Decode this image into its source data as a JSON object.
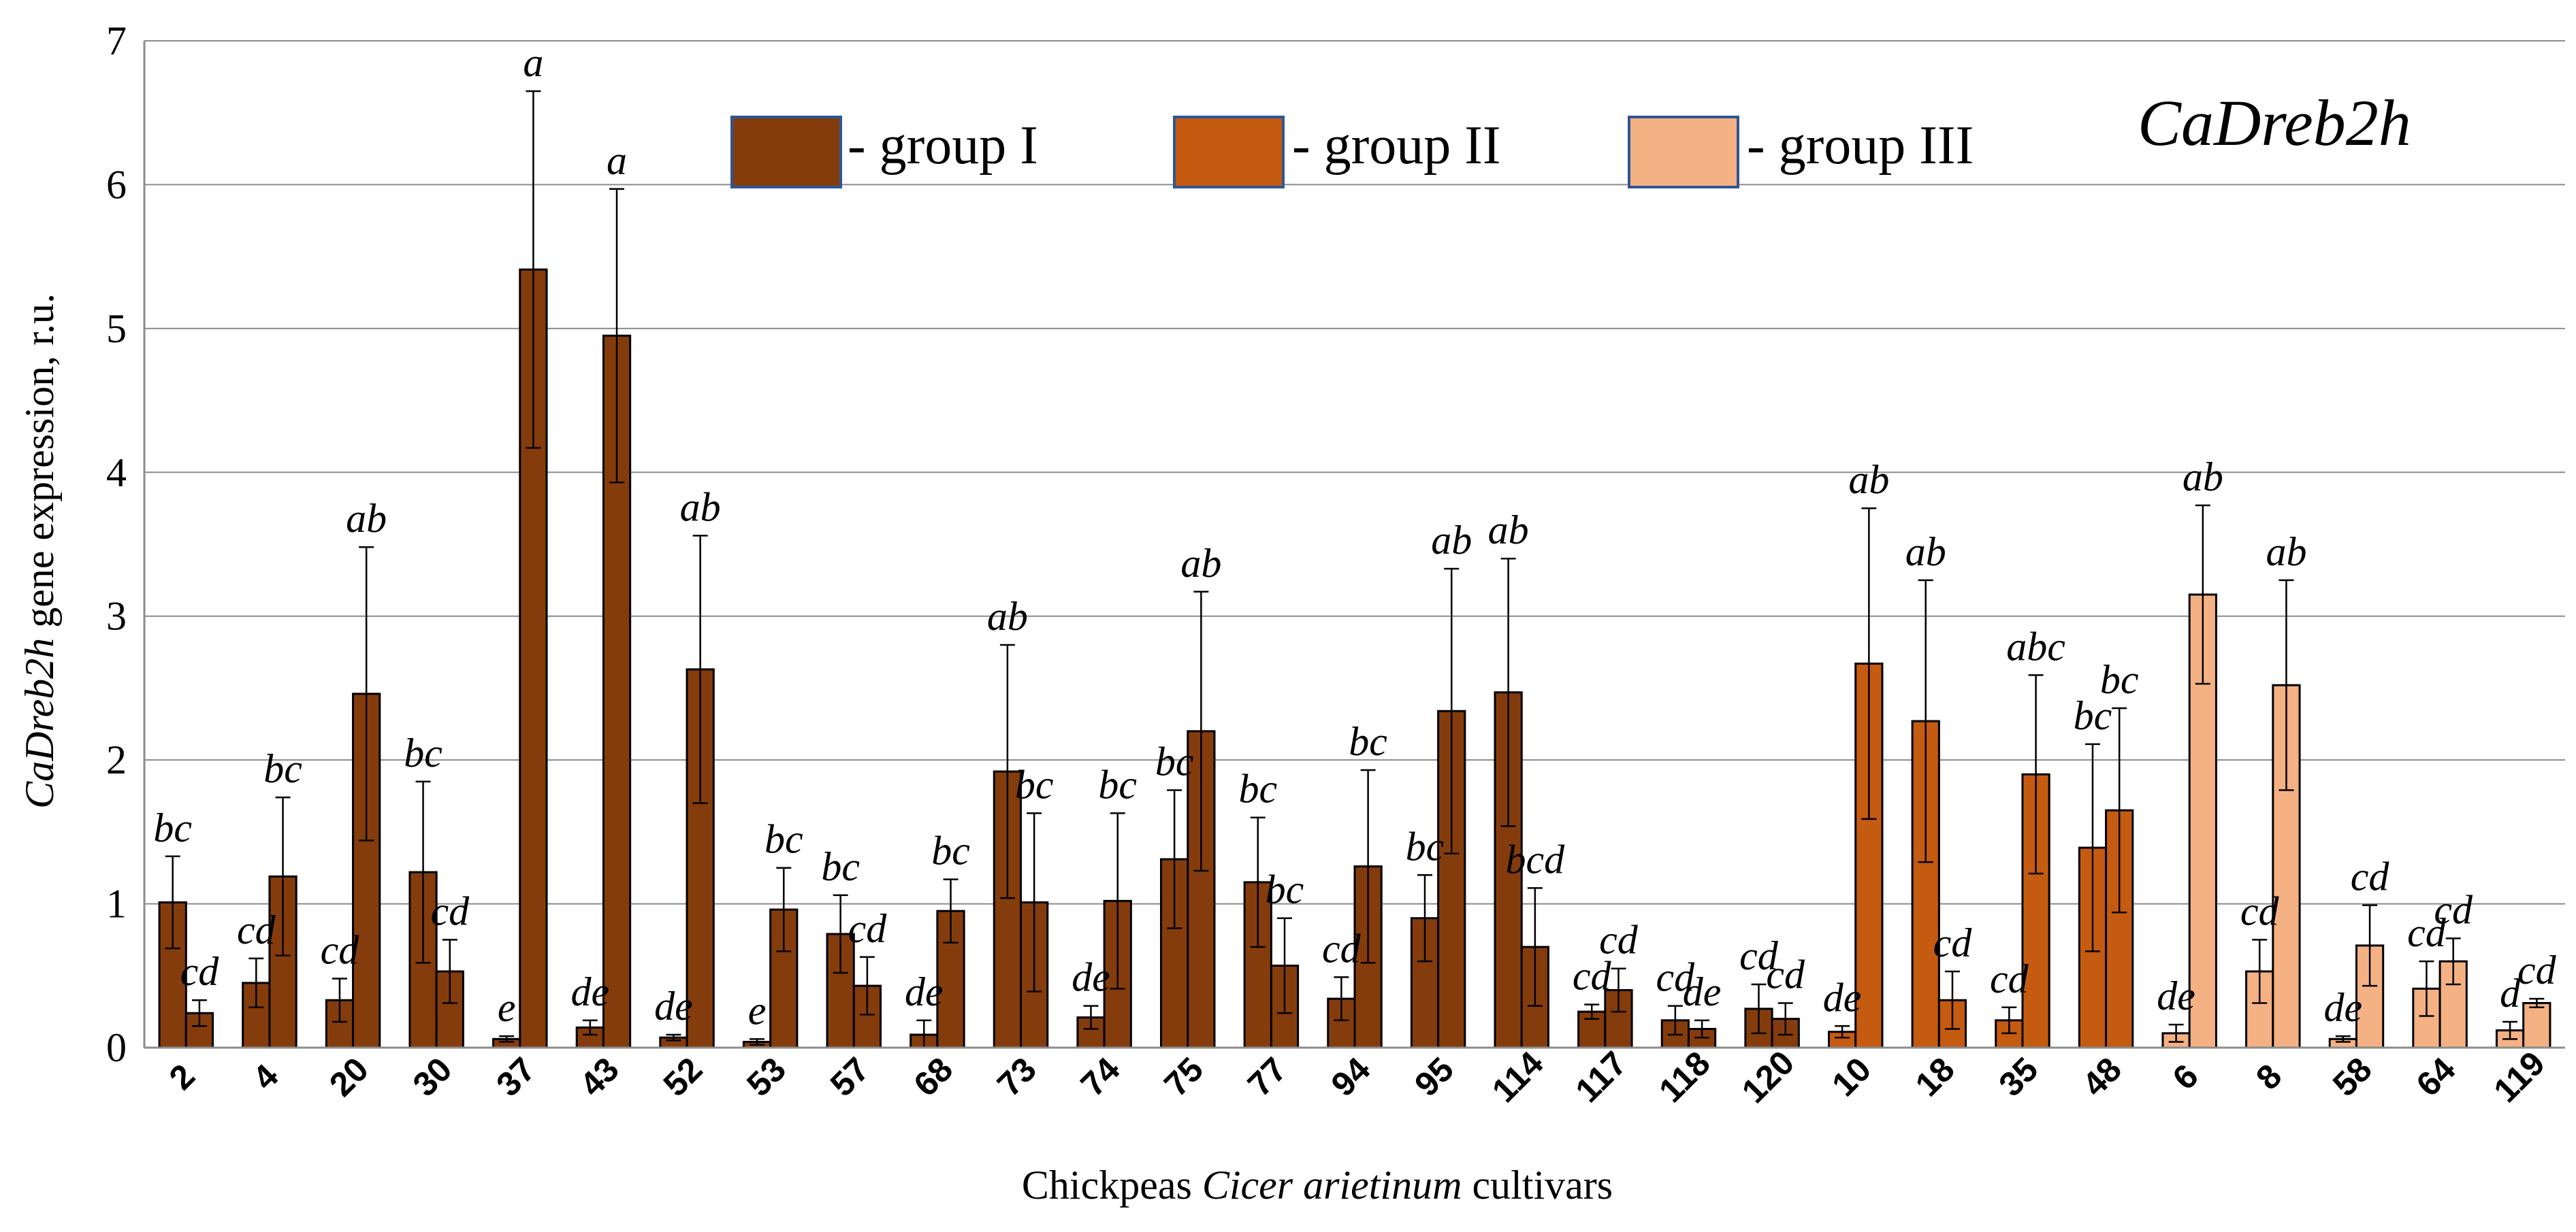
{
  "chart_data": {
    "type": "bar",
    "title": "CaDreb2h",
    "ylabel": {
      "italic": "CaDreb2h",
      "rest": " gene expression, r.u."
    },
    "xlabel": {
      "pre": "Chickpeas ",
      "italic": "Cicer arietinum",
      "post": " cultivars"
    },
    "ylim": [
      0,
      7
    ],
    "yticks": [
      "0",
      "1",
      "2",
      "3",
      "4",
      "5",
      "6",
      "7"
    ],
    "grid": true,
    "legend_position": "top",
    "legend": [
      {
        "swatch": "group-1",
        "label": "- group I"
      },
      {
        "swatch": "group-2",
        "label": "- group II"
      },
      {
        "swatch": "group-3",
        "label": "- group III"
      }
    ],
    "colors": {
      "group-1": "#843C0C",
      "group-2": "#C55A11",
      "group-3": "#F4B183"
    },
    "bar_series_labels": [
      "bar 1",
      "bar 2"
    ],
    "categories": [
      {
        "label": "2",
        "group": "group-1",
        "bars": [
          {
            "value": 1.01,
            "err": 0.32,
            "sig": "bc"
          },
          {
            "value": 0.24,
            "err": 0.09,
            "sig": "cd"
          }
        ]
      },
      {
        "label": "4",
        "group": "group-1",
        "bars": [
          {
            "value": 0.45,
            "err": 0.17,
            "sig": "cd"
          },
          {
            "value": 1.19,
            "err": 0.55,
            "sig": "bc"
          }
        ]
      },
      {
        "label": "20",
        "group": "group-1",
        "bars": [
          {
            "value": 0.33,
            "err": 0.15,
            "sig": "cd"
          },
          {
            "value": 2.46,
            "err": 1.02,
            "sig": "ab"
          }
        ]
      },
      {
        "label": "30",
        "group": "group-1",
        "bars": [
          {
            "value": 1.22,
            "err": 0.63,
            "sig": "bc"
          },
          {
            "value": 0.53,
            "err": 0.22,
            "sig": "cd"
          }
        ]
      },
      {
        "label": "37",
        "group": "group-1",
        "bars": [
          {
            "value": 0.06,
            "err": 0.02,
            "sig": "e"
          },
          {
            "value": 5.41,
            "err": 1.24,
            "sig": "a"
          }
        ]
      },
      {
        "label": "43",
        "group": "group-1",
        "bars": [
          {
            "value": 0.14,
            "err": 0.05,
            "sig": "de"
          },
          {
            "value": 4.95,
            "err": 1.02,
            "sig": "a"
          }
        ]
      },
      {
        "label": "52",
        "group": "group-1",
        "bars": [
          {
            "value": 0.07,
            "err": 0.02,
            "sig": "de"
          },
          {
            "value": 2.63,
            "err": 0.93,
            "sig": "ab"
          }
        ]
      },
      {
        "label": "53",
        "group": "group-1",
        "bars": [
          {
            "value": 0.04,
            "err": 0.02,
            "sig": "e"
          },
          {
            "value": 0.96,
            "err": 0.29,
            "sig": "bc"
          }
        ]
      },
      {
        "label": "57",
        "group": "group-1",
        "bars": [
          {
            "value": 0.79,
            "err": 0.27,
            "sig": "bc"
          },
          {
            "value": 0.43,
            "err": 0.2,
            "sig": "cd"
          }
        ]
      },
      {
        "label": "68",
        "group": "group-1",
        "bars": [
          {
            "value": 0.09,
            "err": 0.1,
            "sig": "de"
          },
          {
            "value": 0.95,
            "err": 0.22,
            "sig": "bc"
          }
        ]
      },
      {
        "label": "73",
        "group": "group-1",
        "bars": [
          {
            "value": 1.92,
            "err": 0.88,
            "sig": "ab"
          },
          {
            "value": 1.01,
            "err": 0.62,
            "sig": "bc"
          }
        ]
      },
      {
        "label": "74",
        "group": "group-1",
        "bars": [
          {
            "value": 0.21,
            "err": 0.08,
            "sig": "de"
          },
          {
            "value": 1.02,
            "err": 0.61,
            "sig": "bc"
          }
        ]
      },
      {
        "label": "75",
        "group": "group-1",
        "bars": [
          {
            "value": 1.31,
            "err": 0.48,
            "sig": "bc"
          },
          {
            "value": 2.2,
            "err": 0.97,
            "sig": "ab"
          }
        ]
      },
      {
        "label": "77",
        "group": "group-1",
        "bars": [
          {
            "value": 1.15,
            "err": 0.45,
            "sig": "bc"
          },
          {
            "value": 0.57,
            "err": 0.33,
            "sig": "bc"
          }
        ]
      },
      {
        "label": "94",
        "group": "group-1",
        "bars": [
          {
            "value": 0.34,
            "err": 0.15,
            "sig": "cd"
          },
          {
            "value": 1.26,
            "err": 0.67,
            "sig": "bc"
          }
        ]
      },
      {
        "label": "95",
        "group": "group-1",
        "bars": [
          {
            "value": 0.9,
            "err": 0.3,
            "sig": "bc"
          },
          {
            "value": 2.34,
            "err": 0.99,
            "sig": "ab"
          }
        ]
      },
      {
        "label": "114",
        "group": "group-1",
        "bars": [
          {
            "value": 2.47,
            "err": 0.93,
            "sig": "ab"
          },
          {
            "value": 0.7,
            "err": 0.41,
            "sig": "bcd"
          }
        ]
      },
      {
        "label": "117",
        "group": "group-1",
        "bars": [
          {
            "value": 0.25,
            "err": 0.05,
            "sig": "cd"
          },
          {
            "value": 0.4,
            "err": 0.15,
            "sig": "cd"
          }
        ]
      },
      {
        "label": "118",
        "group": "group-1",
        "bars": [
          {
            "value": 0.19,
            "err": 0.1,
            "sig": "cd"
          },
          {
            "value": 0.13,
            "err": 0.06,
            "sig": "de"
          }
        ]
      },
      {
        "label": "120",
        "group": "group-1",
        "bars": [
          {
            "value": 0.27,
            "err": 0.17,
            "sig": "cd"
          },
          {
            "value": 0.2,
            "err": 0.11,
            "sig": "cd"
          }
        ]
      },
      {
        "label": "10",
        "group": "group-2",
        "bars": [
          {
            "value": 0.11,
            "err": 0.04,
            "sig": "de"
          },
          {
            "value": 2.67,
            "err": 1.08,
            "sig": "ab"
          }
        ]
      },
      {
        "label": "18",
        "group": "group-2",
        "bars": [
          {
            "value": 2.27,
            "err": 0.98,
            "sig": "ab"
          },
          {
            "value": 0.33,
            "err": 0.2,
            "sig": "cd"
          }
        ]
      },
      {
        "label": "35",
        "group": "group-2",
        "bars": [
          {
            "value": 0.19,
            "err": 0.09,
            "sig": "cd"
          },
          {
            "value": 1.9,
            "err": 0.69,
            "sig": "abc"
          }
        ]
      },
      {
        "label": "48",
        "group": "group-2",
        "bars": [
          {
            "value": 1.39,
            "err": 0.72,
            "sig": "bc"
          },
          {
            "value": 1.65,
            "err": 0.71,
            "sig": "bc"
          }
        ]
      },
      {
        "label": "6",
        "group": "group-3",
        "bars": [
          {
            "value": 0.1,
            "err": 0.06,
            "sig": "de"
          },
          {
            "value": 3.15,
            "err": 0.62,
            "sig": "ab"
          }
        ]
      },
      {
        "label": "8",
        "group": "group-3",
        "bars": [
          {
            "value": 0.53,
            "err": 0.22,
            "sig": "cd"
          },
          {
            "value": 2.52,
            "err": 0.73,
            "sig": "ab"
          }
        ]
      },
      {
        "label": "58",
        "group": "group-3",
        "bars": [
          {
            "value": 0.06,
            "err": 0.02,
            "sig": "de"
          },
          {
            "value": 0.71,
            "err": 0.28,
            "sig": "cd"
          }
        ]
      },
      {
        "label": "64",
        "group": "group-3",
        "bars": [
          {
            "value": 0.41,
            "err": 0.19,
            "sig": "cd"
          },
          {
            "value": 0.6,
            "err": 0.16,
            "sig": "cd"
          }
        ]
      },
      {
        "label": "119",
        "group": "group-3",
        "bars": [
          {
            "value": 0.12,
            "err": 0.06,
            "sig": "d"
          },
          {
            "value": 0.31,
            "err": 0.03,
            "sig": "cd"
          }
        ]
      }
    ]
  }
}
